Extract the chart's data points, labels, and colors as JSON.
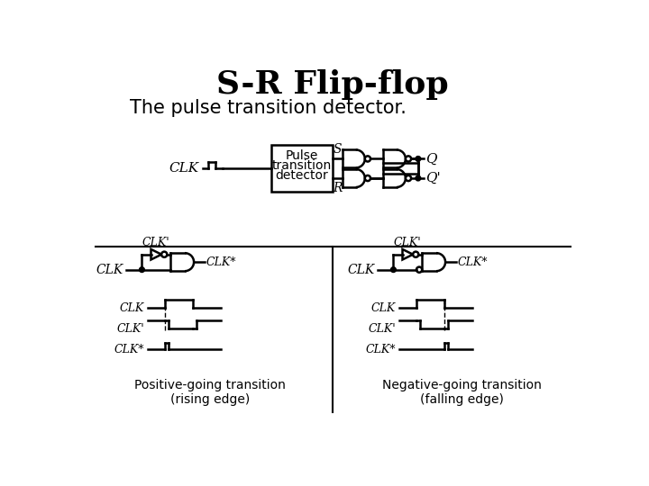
{
  "title": "S-R Flip-flop",
  "subtitle": "The pulse transition detector.",
  "pos_label": "Positive-going transition\n(rising edge)",
  "neg_label": "Negative-going transition\n(falling edge)",
  "bg_color": "#ffffff",
  "line_color": "#000000",
  "title_fontsize": 26,
  "subtitle_fontsize": 15,
  "label_fontsize": 11
}
